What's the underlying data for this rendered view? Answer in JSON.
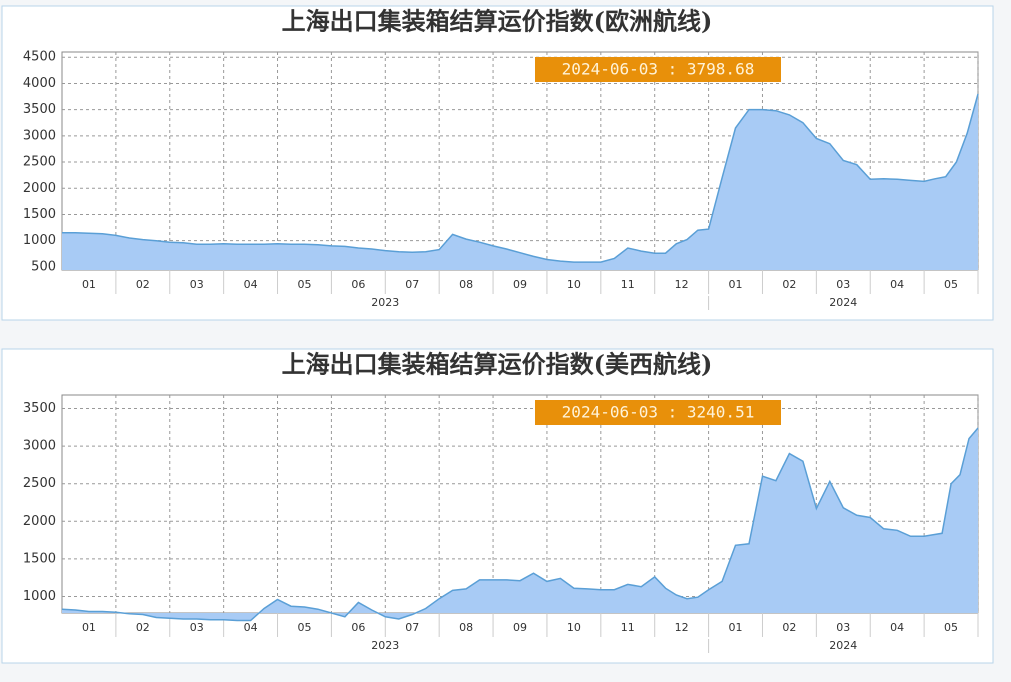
{
  "chart_data": [
    {
      "type": "area",
      "title": "上海出口集装箱结算运价指数(欧洲航线)",
      "annotation": "2024-06-03 : 3798.68",
      "color": "#a8cbf5",
      "line_color": "#5a9fd6",
      "grid": true,
      "ylim": [
        440,
        4600
      ],
      "yticks": [
        500,
        1000,
        1500,
        2000,
        2500,
        3000,
        3500,
        4000,
        4500
      ],
      "month_labels": [
        "01",
        "02",
        "03",
        "04",
        "05",
        "06",
        "07",
        "08",
        "09",
        "10",
        "11",
        "12",
        "01",
        "02",
        "03",
        "04",
        "05"
      ],
      "year_labels": [
        "2023",
        "2024"
      ],
      "x": [
        "2023-01",
        "2023-01",
        "2023-01",
        "2023-01",
        "2023-02",
        "2023-02",
        "2023-02",
        "2023-02",
        "2023-03",
        "2023-03",
        "2023-03",
        "2023-03",
        "2023-04",
        "2023-04",
        "2023-04",
        "2023-04",
        "2023-05",
        "2023-05",
        "2023-05",
        "2023-05",
        "2023-06",
        "2023-06",
        "2023-06",
        "2023-06",
        "2023-07",
        "2023-07",
        "2023-07",
        "2023-07",
        "2023-08",
        "2023-08",
        "2023-08",
        "2023-08",
        "2023-09",
        "2023-09",
        "2023-09",
        "2023-09",
        "2023-10",
        "2023-10",
        "2023-10",
        "2023-10",
        "2023-11",
        "2023-11",
        "2023-11",
        "2023-11",
        "2023-12",
        "2023-12",
        "2023-12",
        "2023-12",
        "2023-12",
        "2024-01",
        "2024-01",
        "2024-01",
        "2024-01",
        "2024-02",
        "2024-02",
        "2024-02",
        "2024-02",
        "2024-03",
        "2024-03",
        "2024-03",
        "2024-03",
        "2024-04",
        "2024-04",
        "2024-04",
        "2024-04",
        "2024-05",
        "2024-05",
        "2024-05",
        "2024-05",
        "2024-05",
        "2024-06"
      ],
      "values": [
        1150,
        1150,
        1140,
        1130,
        1100,
        1050,
        1020,
        1000,
        970,
        960,
        930,
        930,
        940,
        930,
        930,
        930,
        940,
        930,
        930,
        920,
        900,
        890,
        860,
        840,
        810,
        790,
        780,
        790,
        830,
        1120,
        1030,
        970,
        900,
        840,
        770,
        700,
        640,
        610,
        590,
        590,
        590,
        660,
        860,
        800,
        760,
        760,
        940,
        1020,
        1200,
        1220,
        2200,
        3150,
        3500,
        3500,
        3480,
        3400,
        3250,
        2950,
        2850,
        2530,
        2450,
        2170,
        2180,
        2170,
        2150,
        2130,
        2180,
        2220,
        2500,
        3050,
        3798.68
      ]
    },
    {
      "type": "area",
      "title": "上海出口集装箱结算运价指数(美西航线)",
      "annotation": "2024-06-03 : 3240.51",
      "color": "#a8cbf5",
      "line_color": "#5a9fd6",
      "grid": true,
      "ylim": [
        780,
        3680
      ],
      "yticks": [
        1000,
        1500,
        2000,
        2500,
        3000,
        3500
      ],
      "month_labels": [
        "01",
        "02",
        "03",
        "04",
        "05",
        "06",
        "07",
        "08",
        "09",
        "10",
        "11",
        "12",
        "01",
        "02",
        "03",
        "04",
        "05"
      ],
      "year_labels": [
        "2023",
        "2024"
      ],
      "x": [
        "2023-01",
        "2023-01",
        "2023-01",
        "2023-01",
        "2023-02",
        "2023-02",
        "2023-02",
        "2023-02",
        "2023-03",
        "2023-03",
        "2023-03",
        "2023-03",
        "2023-04",
        "2023-04",
        "2023-04",
        "2023-04",
        "2023-05",
        "2023-05",
        "2023-05",
        "2023-05",
        "2023-06",
        "2023-06",
        "2023-06",
        "2023-06",
        "2023-07",
        "2023-07",
        "2023-07",
        "2023-07",
        "2023-08",
        "2023-08",
        "2023-08",
        "2023-08",
        "2023-09",
        "2023-09",
        "2023-09",
        "2023-09",
        "2023-10",
        "2023-10",
        "2023-10",
        "2023-10",
        "2023-11",
        "2023-11",
        "2023-11",
        "2023-11",
        "2023-12",
        "2023-12",
        "2023-12",
        "2023-12",
        "2023-12",
        "2024-01",
        "2024-01",
        "2024-01",
        "2024-01",
        "2024-02",
        "2024-02",
        "2024-02",
        "2024-02",
        "2024-03",
        "2024-03",
        "2024-03",
        "2024-03",
        "2024-04",
        "2024-04",
        "2024-04",
        "2024-04",
        "2024-05",
        "2024-05",
        "2024-05",
        "2024-05",
        "2024-05",
        "2024-05",
        "2024-06"
      ],
      "values": [
        830,
        820,
        800,
        800,
        790,
        770,
        760,
        720,
        710,
        700,
        700,
        690,
        690,
        680,
        680,
        840,
        960,
        870,
        860,
        830,
        780,
        730,
        920,
        820,
        730,
        700,
        760,
        840,
        970,
        1080,
        1100,
        1220,
        1220,
        1220,
        1210,
        1310,
        1200,
        1240,
        1110,
        1100,
        1090,
        1090,
        1160,
        1130,
        1260,
        1110,
        1020,
        970,
        990,
        1090,
        1200,
        1680,
        1700,
        2600,
        2540,
        2900,
        2800,
        2170,
        2530,
        2180,
        2080,
        2050,
        1900,
        1880,
        1800,
        1800,
        1820,
        1840,
        2500,
        2620,
        3100,
        3240.51
      ]
    }
  ]
}
